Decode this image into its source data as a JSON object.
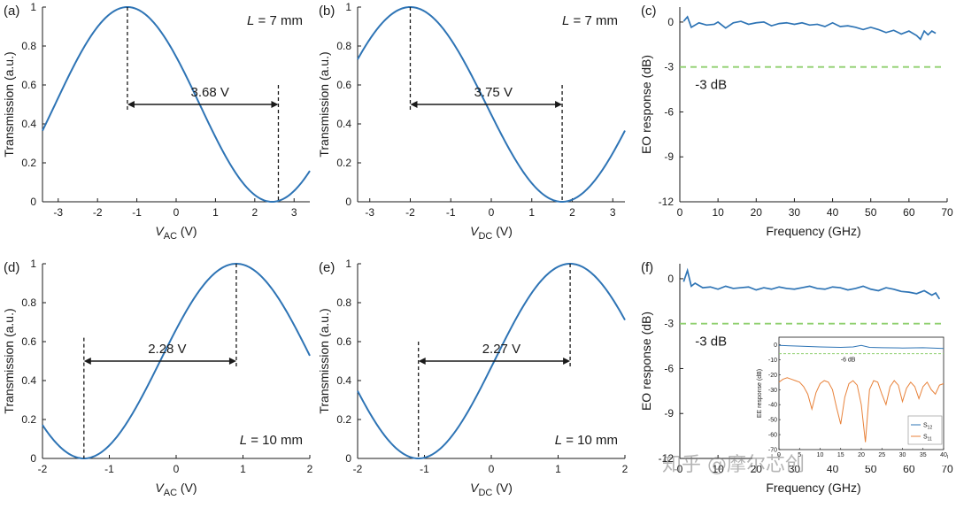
{
  "colors": {
    "curve": "#2e74b5",
    "dashed_ref": "#8fcf6e",
    "s11": "#e8823a",
    "axis": "#1a1a1a"
  },
  "watermark": "知乎 @摩尔芯创",
  "chart_data": [
    {
      "id": "a",
      "panel": "(a)",
      "type": "line",
      "xvar": "V",
      "xsub": "AC",
      "xunit": " (V)",
      "ylabel": "Transmission (a.u.)",
      "xlim": [
        -3.4,
        3.4
      ],
      "ylim": [
        0,
        1
      ],
      "xticks": [
        -3,
        -2,
        -1,
        0,
        1,
        2,
        3
      ],
      "yticks": [
        0,
        0.2,
        0.4,
        0.6,
        0.8,
        1
      ],
      "ytick_labels": [
        "0",
        "0.2",
        "0.4",
        "0.6",
        "0.8",
        "1"
      ],
      "model": {
        "peak_x": -1.24,
        "half_wave_voltage": 3.68
      },
      "annotation": {
        "label": "3.68 V",
        "x_from": -1.24,
        "x_to": 2.6,
        "y": 0.5,
        "marker_y": 0.6,
        "marker_side": "right"
      },
      "L_prefix": "L",
      "L_value": " = 7 mm",
      "L_corner": "top"
    },
    {
      "id": "b",
      "panel": "(b)",
      "type": "line",
      "xvar": "V",
      "xsub": "DC",
      "xunit": " (V)",
      "ylabel": "Transmission (a.u.)",
      "xlim": [
        -3.3,
        3.3
      ],
      "ylim": [
        0,
        1
      ],
      "xticks": [
        -3,
        -2,
        -1,
        0,
        1,
        2,
        3
      ],
      "yticks": [
        0,
        0.2,
        0.4,
        0.6,
        0.8,
        1
      ],
      "ytick_labels": [
        "0",
        "0.2",
        "0.4",
        "0.6",
        "0.8",
        "1"
      ],
      "model": {
        "peak_x": -2.0,
        "half_wave_voltage": 3.75
      },
      "annotation": {
        "label": "3.75 V",
        "x_from": -2.0,
        "x_to": 1.75,
        "y": 0.5,
        "marker_y": 0.6,
        "marker_side": "right"
      },
      "L_prefix": "L",
      "L_value": " = 7 mm",
      "L_corner": "top"
    },
    {
      "id": "c",
      "panel": "(c)",
      "type": "line",
      "xlabel": "Frequency (GHz)",
      "ylabel": "EO response (dB)",
      "xlim": [
        0,
        70
      ],
      "ylim": [
        -12,
        1
      ],
      "xticks": [
        0,
        10,
        20,
        30,
        40,
        50,
        60,
        70
      ],
      "yticks": [
        0,
        -3,
        -6,
        -9,
        -12
      ],
      "ytick_labels": [
        "0",
        "-3",
        "-6",
        "-9",
        "-12"
      ],
      "series": [
        {
          "name": "EO response",
          "x": [
            1,
            2,
            3,
            5,
            7,
            9,
            10,
            12,
            14,
            16,
            18,
            20,
            22,
            24,
            26,
            28,
            30,
            32,
            34,
            36,
            38,
            40,
            42,
            44,
            46,
            48,
            50,
            52,
            54,
            56,
            58,
            60,
            62,
            63,
            64,
            65,
            66,
            67
          ],
          "y": [
            0.05,
            0.35,
            -0.35,
            -0.05,
            -0.2,
            -0.15,
            0.0,
            -0.4,
            -0.05,
            0.05,
            -0.15,
            -0.05,
            0.0,
            -0.25,
            -0.1,
            -0.05,
            -0.15,
            -0.05,
            -0.2,
            -0.15,
            -0.3,
            -0.05,
            -0.3,
            -0.25,
            -0.35,
            -0.5,
            -0.35,
            -0.5,
            -0.7,
            -0.55,
            -0.8,
            -0.6,
            -0.9,
            -1.15,
            -0.6,
            -0.85,
            -0.6,
            -0.75
          ]
        }
      ],
      "ref_line": {
        "y": -3,
        "label": "-3 dB"
      }
    },
    {
      "id": "d",
      "panel": "(d)",
      "type": "line",
      "xvar": "V",
      "xsub": "AC",
      "xunit": " (V)",
      "ylabel": "Transmission (a.u.)",
      "xlim": [
        -2,
        2
      ],
      "ylim": [
        0,
        1
      ],
      "xticks": [
        -2,
        -1,
        0,
        1,
        2
      ],
      "yticks": [
        0,
        0.2,
        0.4,
        0.6,
        0.8,
        1
      ],
      "ytick_labels": [
        "0",
        "0.2",
        "0.4",
        "0.6",
        "0.8",
        "1"
      ],
      "model": {
        "peak_x": 0.9,
        "half_wave_voltage": 2.28
      },
      "annotation": {
        "label": "2.28 V",
        "x_from": -1.38,
        "x_to": 0.9,
        "y": 0.5,
        "marker_y": 0.62,
        "marker_side": "left"
      },
      "L_prefix": "L",
      "L_value": " = 10 mm",
      "L_corner": "bottom"
    },
    {
      "id": "e",
      "panel": "(e)",
      "type": "line",
      "xvar": "V",
      "xsub": "DC",
      "xunit": " (V)",
      "ylabel": "Transmission (a.u.)",
      "xlim": [
        -2,
        2
      ],
      "ylim": [
        0,
        1
      ],
      "xticks": [
        -2,
        -1,
        0,
        1,
        2
      ],
      "yticks": [
        0,
        0.2,
        0.4,
        0.6,
        0.8,
        1
      ],
      "ytick_labels": [
        "0",
        "0.2",
        "0.4",
        "0.6",
        "0.8",
        "1"
      ],
      "model": {
        "peak_x": 1.18,
        "half_wave_voltage": 2.27
      },
      "annotation": {
        "label": "2.27 V",
        "x_from": -1.09,
        "x_to": 1.18,
        "y": 0.5,
        "marker_y": 0.6,
        "marker_side": "left"
      },
      "L_prefix": "L",
      "L_value": " = 10 mm",
      "L_corner": "bottom"
    },
    {
      "id": "f",
      "panel": "(f)",
      "type": "line",
      "xlabel": "Frequency (GHz)",
      "ylabel": "EO response (dB)",
      "xlim": [
        0,
        70
      ],
      "ylim": [
        -12,
        1
      ],
      "xticks": [
        0,
        10,
        20,
        30,
        40,
        50,
        60,
        70
      ],
      "yticks": [
        0,
        -3,
        -6,
        -9,
        -12
      ],
      "ytick_labels": [
        "0",
        "-3",
        "-6",
        "-9",
        "-12"
      ],
      "series": [
        {
          "name": "EO response",
          "x": [
            1,
            2,
            3,
            4,
            6,
            8,
            10,
            12,
            14,
            16,
            18,
            20,
            22,
            24,
            26,
            28,
            30,
            32,
            34,
            36,
            38,
            40,
            42,
            44,
            46,
            48,
            50,
            52,
            54,
            56,
            58,
            60,
            62,
            64,
            66,
            67,
            68
          ],
          "y": [
            -0.2,
            0.55,
            -0.5,
            -0.3,
            -0.6,
            -0.55,
            -0.7,
            -0.5,
            -0.65,
            -0.6,
            -0.55,
            -0.75,
            -0.6,
            -0.7,
            -0.55,
            -0.65,
            -0.7,
            -0.6,
            -0.5,
            -0.65,
            -0.7,
            -0.55,
            -0.6,
            -0.75,
            -0.65,
            -0.5,
            -0.7,
            -0.8,
            -0.6,
            -0.7,
            -0.85,
            -0.9,
            -1.0,
            -0.8,
            -1.1,
            -0.95,
            -1.35
          ]
        }
      ],
      "ref_line": {
        "y": -3,
        "label": "-3 dB"
      },
      "inset": {
        "ylabel": "EE response (dB)",
        "xlim": [
          0,
          40
        ],
        "ylim": [
          -70,
          5
        ],
        "xticks": [
          0,
          5,
          10,
          15,
          20,
          25,
          30,
          35,
          40
        ],
        "yticks": [
          0,
          -10,
          -20,
          -30,
          -40,
          -50,
          -60,
          -70
        ],
        "ref_line": {
          "y": -6,
          "label": "-6 dB"
        },
        "series": [
          {
            "name": "S12",
            "base": "S",
            "sub": "12",
            "x": [
              0,
              5,
              10,
              15,
              18,
              20,
              22,
              25,
              30,
              35,
              40
            ],
            "y": [
              -0.5,
              -1.0,
              -1.5,
              -1.8,
              -1.5,
              -0.5,
              -1.8,
              -2.0,
              -2.2,
              -2.0,
              -2.5
            ]
          },
          {
            "name": "S11",
            "base": "S",
            "sub": "11",
            "x": [
              0,
              1,
              2,
              3,
              4,
              5,
              6,
              7,
              8,
              9,
              10,
              11,
              12,
              13,
              14,
              15,
              16,
              17,
              18,
              19,
              20,
              21,
              22,
              23,
              24,
              25,
              26,
              27,
              28,
              29,
              30,
              31,
              32,
              33,
              34,
              35,
              36,
              37,
              38,
              39,
              40
            ],
            "y": [
              -25,
              -23,
              -22,
              -23,
              -24,
              -25,
              -28,
              -33,
              -43,
              -32,
              -26,
              -24,
              -25,
              -30,
              -42,
              -53,
              -35,
              -26,
              -24,
              -27,
              -40,
              -65,
              -30,
              -24,
              -25,
              -33,
              -40,
              -28,
              -24,
              -27,
              -38,
              -29,
              -25,
              -28,
              -36,
              -28,
              -25,
              -30,
              -33,
              -27,
              -26
            ]
          }
        ]
      }
    }
  ]
}
